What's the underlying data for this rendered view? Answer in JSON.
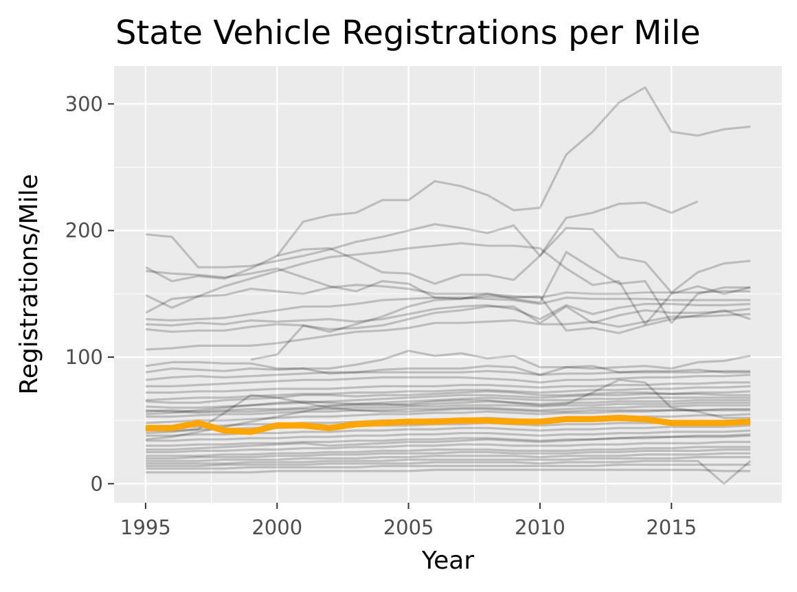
{
  "chart_data": {
    "type": "line",
    "title": "State Vehicle Registrations per Mile",
    "xlabel": "Year",
    "ylabel": "Registrations/Mile",
    "xlim": [
      1993.8,
      2019.2
    ],
    "ylim": [
      -15,
      330
    ],
    "x_ticks": [
      1995,
      2000,
      2005,
      2010,
      2015
    ],
    "x_tick_labels": [
      "1995",
      "2000",
      "2005",
      "2010",
      "2015"
    ],
    "y_ticks": [
      0,
      100,
      200,
      300
    ],
    "y_tick_labels": [
      "0",
      "100",
      "200",
      "300"
    ],
    "grid": true,
    "legend": "none",
    "colors": {
      "panel": "#ebebeb",
      "grid": "#ffffff",
      "background_series": "#000000",
      "highlight": "#FFA500",
      "tick_text": "#4d4d4d"
    },
    "x": [
      1995,
      1996,
      1997,
      1998,
      1999,
      2000,
      2001,
      2002,
      2003,
      2004,
      2005,
      2006,
      2007,
      2008,
      2009,
      2010,
      2011,
      2012,
      2013,
      2014,
      2015,
      2016,
      2017,
      2018
    ],
    "series": [
      {
        "highlight": false,
        "values": [
          null,
          null,
          null,
          null,
          null,
          180,
          207,
          212,
          214,
          224,
          224,
          239,
          235,
          228,
          216,
          218,
          260,
          278,
          301,
          313,
          278,
          275,
          280,
          282
        ]
      },
      {
        "highlight": false,
        "values": [
          197,
          195,
          171,
          171,
          172,
          176,
          180,
          185,
          191,
          195,
          200,
          205,
          202,
          198,
          204,
          180,
          210,
          214,
          221,
          222,
          214,
          223,
          null,
          null
        ]
      },
      {
        "highlight": false,
        "values": [
          171,
          160,
          164,
          162,
          170,
          180,
          185,
          186,
          177,
          167,
          166,
          158,
          165,
          165,
          161,
          180,
          202,
          201,
          179,
          175,
          151,
          167,
          174,
          176
        ]
      },
      {
        "highlight": false,
        "values": [
          168,
          166,
          165,
          163,
          166,
          170,
          163,
          156,
          152,
          160,
          158,
          147,
          146,
          150,
          146,
          143,
          183,
          170,
          158,
          160,
          127,
          150,
          155,
          155
        ]
      },
      {
        "highlight": false,
        "values": [
          149,
          139,
          148,
          156,
          162,
          168,
          174,
          179,
          181,
          183,
          186,
          188,
          190,
          188,
          188,
          186,
          170,
          157,
          160,
          126,
          150,
          156,
          150,
          155
        ]
      },
      {
        "highlight": false,
        "values": [
          135,
          146,
          148,
          149,
          154,
          152,
          150,
          155,
          157,
          156,
          154,
          150,
          150,
          150,
          148,
          147,
          151,
          150,
          150,
          151,
          151,
          151,
          152,
          152
        ]
      },
      {
        "highlight": false,
        "values": [
          130,
          129,
          130,
          131,
          134,
          137,
          140,
          140,
          142,
          145,
          146,
          147,
          147,
          146,
          145,
          142,
          147,
          146,
          146,
          146,
          145,
          145,
          145,
          145
        ]
      },
      {
        "highlight": false,
        "values": [
          126,
          125,
          127,
          126,
          129,
          128,
          129,
          130,
          128,
          130,
          134,
          138,
          140,
          141,
          138,
          130,
          141,
          134,
          139,
          142,
          142,
          141,
          141,
          142
        ]
      },
      {
        "highlight": false,
        "values": [
          122,
          120,
          121,
          121,
          124,
          126,
          125,
          122,
          123,
          125,
          130,
          135,
          137,
          140,
          140,
          127,
          140,
          127,
          133,
          137,
          135,
          135,
          136,
          138
        ]
      },
      {
        "highlight": false,
        "values": [
          106,
          107,
          109,
          109,
          109,
          111,
          114,
          117,
          120,
          121,
          123,
          127,
          127,
          128,
          129,
          126,
          126,
          128,
          124,
          128,
          132,
          132,
          133,
          134
        ]
      },
      {
        "highlight": false,
        "values": [
          null,
          null,
          null,
          null,
          98,
          102,
          125,
          120,
          126,
          132,
          140,
          145,
          146,
          148,
          147,
          148,
          121,
          123,
          119,
          125,
          130,
          133,
          137,
          130
        ]
      },
      {
        "highlight": false,
        "values": [
          93,
          96,
          96,
          95,
          95,
          91,
          91,
          87,
          88,
          90,
          91,
          91,
          91,
          93,
          92,
          86,
          92,
          91,
          92,
          93,
          91,
          96,
          97,
          101
        ]
      },
      {
        "highlight": false,
        "values": [
          88,
          91,
          90,
          89,
          91,
          90,
          91,
          91,
          94,
          98,
          105,
          101,
          103,
          99,
          101,
          92,
          92,
          93,
          88,
          89,
          89,
          90,
          88,
          88
        ]
      },
      {
        "highlight": false,
        "values": [
          82,
          84,
          85,
          84,
          85,
          86,
          87,
          88,
          88,
          88,
          88,
          88,
          88,
          89,
          88,
          86,
          87,
          87,
          88,
          88,
          88,
          88,
          89,
          89
        ]
      },
      {
        "highlight": false,
        "values": [
          77,
          77,
          78,
          79,
          80,
          81,
          82,
          82,
          83,
          84,
          84,
          84,
          84,
          83,
          82,
          80,
          82,
          82,
          83,
          84,
          84,
          85,
          85,
          86
        ]
      },
      {
        "highlight": false,
        "values": [
          72,
          72,
          73,
          73,
          74,
          75,
          75,
          75,
          76,
          77,
          77,
          77,
          78,
          78,
          77,
          76,
          77,
          77,
          78,
          78,
          79,
          79,
          80,
          80
        ]
      },
      {
        "highlight": false,
        "values": [
          66,
          67,
          68,
          68,
          69,
          70,
          71,
          71,
          72,
          72,
          73,
          73,
          74,
          74,
          73,
          72,
          73,
          74,
          74,
          75,
          75,
          76,
          76,
          77
        ]
      },
      {
        "highlight": false,
        "values": [
          65,
          64,
          64,
          66,
          67,
          68,
          70,
          70,
          69,
          70,
          70,
          71,
          72,
          73,
          72,
          70,
          70,
          71,
          72,
          72,
          71,
          72,
          72,
          73
        ]
      },
      {
        "highlight": false,
        "values": [
          61,
          60,
          60,
          61,
          62,
          63,
          64,
          65,
          66,
          67,
          68,
          69,
          70,
          70,
          69,
          68,
          69,
          70,
          70,
          71,
          71,
          71,
          70,
          70
        ]
      },
      {
        "highlight": false,
        "values": [
          57,
          58,
          57,
          58,
          59,
          59,
          60,
          62,
          63,
          64,
          65,
          66,
          67,
          68,
          67,
          66,
          66,
          67,
          67,
          68,
          68,
          68,
          68,
          68
        ]
      },
      {
        "highlight": false,
        "values": [
          55,
          56,
          58,
          60,
          62,
          64,
          65,
          64,
          63,
          63,
          62,
          63,
          64,
          65,
          64,
          63,
          64,
          64,
          65,
          65,
          65,
          66,
          66,
          66
        ]
      },
      {
        "highlight": false,
        "values": [
          58,
          57,
          56,
          57,
          57,
          58,
          59,
          59,
          60,
          60,
          61,
          61,
          62,
          62,
          62,
          61,
          62,
          62,
          63,
          63,
          63,
          64,
          64,
          64
        ]
      },
      {
        "highlight": false,
        "values": [
          53,
          53,
          54,
          55,
          55,
          56,
          57,
          57,
          58,
          58,
          59,
          59,
          60,
          60,
          59,
          58,
          59,
          60,
          60,
          61,
          61,
          62,
          62,
          62
        ]
      },
      {
        "highlight": false,
        "values": [
          48,
          49,
          50,
          50,
          51,
          52,
          53,
          53,
          54,
          55,
          55,
          56,
          56,
          57,
          56,
          55,
          56,
          56,
          57,
          57,
          58,
          58,
          59,
          59
        ]
      },
      {
        "highlight": false,
        "values": [
          40,
          41,
          43,
          56,
          70,
          68,
          64,
          60,
          58,
          57,
          57,
          58,
          59,
          59,
          58,
          57,
          57,
          58,
          58,
          58,
          58,
          58,
          58,
          58
        ]
      },
      {
        "highlight": false,
        "values": [
          45,
          45,
          45,
          46,
          47,
          47,
          48,
          48,
          49,
          50,
          50,
          51,
          51,
          52,
          51,
          50,
          51,
          52,
          52,
          53,
          53,
          54,
          54,
          55
        ]
      },
      {
        "highlight": false,
        "values": [
          35,
          37,
          41,
          45,
          49,
          53,
          57,
          61,
          62,
          62,
          63,
          65,
          66,
          66,
          64,
          62,
          63,
          72,
          82,
          80,
          60,
          57,
          52,
          52
        ]
      },
      {
        "highlight": false,
        "values": [
          42,
          42,
          43,
          43,
          44,
          44,
          45,
          45,
          46,
          46,
          46,
          47,
          47,
          48,
          47,
          46,
          47,
          47,
          48,
          48,
          48,
          49,
          49,
          49
        ]
      },
      {
        "highlight": false,
        "values": [
          38,
          38,
          39,
          39,
          40,
          40,
          41,
          41,
          42,
          42,
          43,
          43,
          44,
          44,
          43,
          42,
          43,
          43,
          44,
          44,
          45,
          45,
          45,
          46
        ]
      },
      {
        "highlight": false,
        "values": [
          34,
          34,
          35,
          35,
          36,
          36,
          37,
          37,
          38,
          38,
          39,
          39,
          40,
          40,
          39,
          38,
          39,
          39,
          40,
          40,
          41,
          41,
          41,
          42
        ]
      },
      {
        "highlight": false,
        "values": [
          30,
          30,
          31,
          31,
          32,
          32,
          33,
          33,
          34,
          34,
          35,
          35,
          36,
          36,
          35,
          34,
          35,
          35,
          36,
          36,
          37,
          37,
          37,
          38
        ]
      },
      {
        "highlight": false,
        "values": [
          27,
          27,
          28,
          29,
          30,
          31,
          32,
          30,
          31,
          32,
          33,
          33,
          34,
          35,
          34,
          33,
          34,
          35,
          36,
          37,
          37,
          38,
          38,
          39
        ]
      },
      {
        "highlight": false,
        "values": [
          25,
          25,
          26,
          26,
          27,
          27,
          28,
          28,
          29,
          29,
          30,
          30,
          31,
          31,
          30,
          30,
          30,
          31,
          31,
          32,
          32,
          32,
          33,
          33
        ]
      },
      {
        "highlight": false,
        "values": [
          22,
          22,
          22,
          23,
          23,
          24,
          24,
          25,
          25,
          26,
          26,
          27,
          27,
          27,
          26,
          26,
          26,
          27,
          27,
          28,
          28,
          29,
          29,
          29
        ]
      },
      {
        "highlight": false,
        "values": [
          20,
          20,
          21,
          21,
          21,
          22,
          22,
          23,
          23,
          24,
          24,
          24,
          25,
          25,
          24,
          24,
          24,
          25,
          25,
          26,
          26,
          26,
          27,
          27
        ]
      },
      {
        "highlight": false,
        "values": [
          18,
          18,
          18,
          19,
          19,
          19,
          20,
          20,
          20,
          21,
          21,
          22,
          22,
          22,
          22,
          21,
          22,
          22,
          22,
          23,
          23,
          23,
          24,
          24
        ]
      },
      {
        "highlight": false,
        "values": [
          16,
          16,
          16,
          16,
          17,
          17,
          17,
          18,
          18,
          18,
          19,
          19,
          19,
          19,
          19,
          19,
          19,
          20,
          20,
          20,
          20,
          21,
          21,
          21
        ]
      },
      {
        "highlight": false,
        "values": [
          14,
          14,
          14,
          15,
          15,
          15,
          15,
          16,
          16,
          16,
          16,
          17,
          17,
          17,
          17,
          16,
          17,
          17,
          17,
          18,
          18,
          18,
          0,
          18
        ]
      },
      {
        "highlight": false,
        "values": [
          12,
          12,
          12,
          12,
          13,
          13,
          13,
          13,
          13,
          14,
          14,
          14,
          14,
          14,
          14,
          14,
          14,
          14,
          15,
          15,
          15,
          15,
          15,
          15
        ]
      },
      {
        "highlight": false,
        "values": [
          9,
          9,
          9,
          9,
          9,
          10,
          10,
          10,
          10,
          10,
          10,
          11,
          11,
          11,
          11,
          11,
          11,
          11,
          11,
          11,
          11,
          11,
          10,
          10
        ]
      },
      {
        "highlight": true,
        "values": [
          44,
          44,
          48,
          42,
          41,
          46,
          46,
          44,
          47,
          48,
          49,
          49,
          50,
          50,
          49,
          49,
          51,
          51,
          52,
          51,
          48,
          48,
          48,
          49
        ]
      }
    ]
  }
}
